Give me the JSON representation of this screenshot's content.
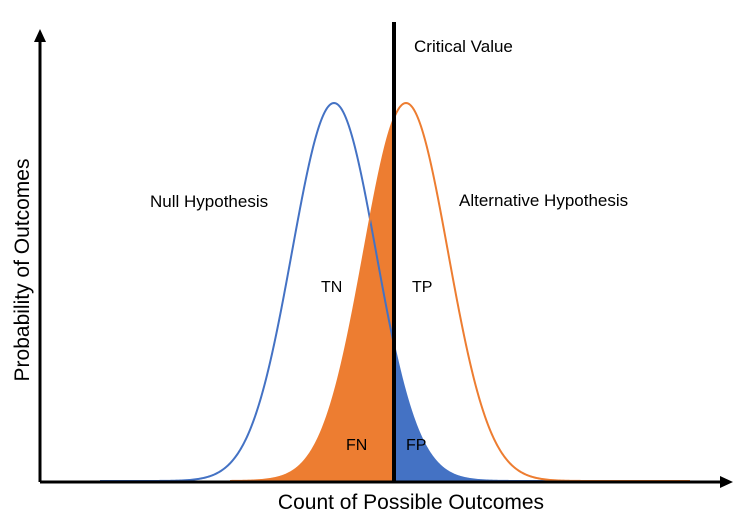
{
  "labels": {
    "critical_value": "Critical Value",
    "null_hypothesis": "Null Hypothesis",
    "alternative_hypothesis": "Alternative Hypothesis",
    "tn": "TN",
    "tp": "TP",
    "fn": "FN",
    "fp": "FP",
    "x_axis": "Count of Possible Outcomes",
    "y_axis": "Probability of Outcomes"
  },
  "colors": {
    "null_curve": "#4472C4",
    "alternative_curve": "#ED7D31",
    "fn_fill": "#ED7D31",
    "fp_fill": "#4472C4",
    "axis": "#000000",
    "critical_line": "#000000"
  }
}
